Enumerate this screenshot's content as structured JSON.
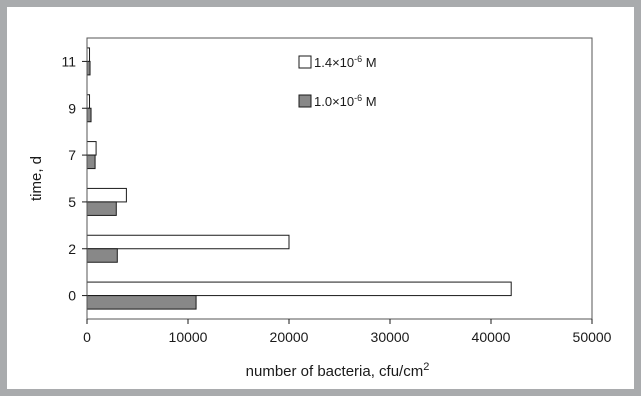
{
  "chart_data": {
    "type": "bar",
    "orientation": "horizontal",
    "categories": [
      "0",
      "2",
      "5",
      "7",
      "9",
      "11"
    ],
    "series": [
      {
        "name": "1.4×10",
        "name_sup": "-6",
        "name_suffix": " M",
        "color": "#ffffff",
        "values": [
          42000,
          20000,
          3900,
          900,
          250,
          250
        ]
      },
      {
        "name": "1.0×10",
        "name_sup": "-6",
        "name_suffix": " M",
        "color": "#888888",
        "values": [
          10800,
          3000,
          2900,
          800,
          400,
          300
        ]
      }
    ],
    "xlabel": "number of bacteria, cfu/cm",
    "xlabel_sup": "2",
    "ylabel": "time, d",
    "xlim": [
      0,
      50000
    ],
    "xticks": [
      0,
      10000,
      20000,
      30000,
      40000,
      50000
    ],
    "xtick_labels": [
      "0",
      "10000",
      "20000",
      "30000",
      "40000",
      "50000"
    ],
    "grid": false,
    "legend_position": "top-center"
  }
}
